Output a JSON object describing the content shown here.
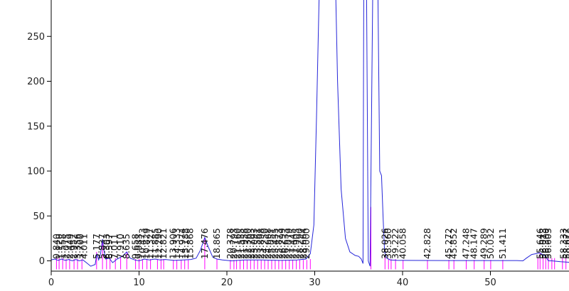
{
  "chart_data": {
    "type": "line",
    "title": "",
    "xlabel": "",
    "ylabel": "",
    "xlim": [
      0,
      59.5
    ],
    "ylim": [
      -10,
      295
    ],
    "x_ticks": [
      0,
      10,
      20,
      30,
      40,
      50
    ],
    "y_ticks": [
      0,
      50,
      100,
      150,
      200,
      250
    ],
    "x_tick_labels": [
      "0",
      "10",
      "20",
      "30",
      "40",
      "50"
    ],
    "y_tick_labels": [
      "0",
      "50",
      "100",
      "150",
      "200",
      "250"
    ],
    "grid": false,
    "legend": "none",
    "colors": {
      "trace": "#2626d9",
      "markers": "#ff00ff",
      "axes": "#000000"
    },
    "series": [
      {
        "values": [
          [
            0,
            1
          ],
          [
            0.4,
            2
          ],
          [
            0.8,
            0.5
          ],
          [
            1.2,
            2
          ],
          [
            1.6,
            0.5
          ],
          [
            2.0,
            1.5
          ],
          [
            2.4,
            0
          ],
          [
            2.8,
            1.5
          ],
          [
            3.2,
            0
          ],
          [
            3.6,
            1
          ],
          [
            4.0,
            -2
          ],
          [
            4.5,
            -6
          ],
          [
            5.0,
            -4
          ],
          [
            5.2,
            8
          ],
          [
            5.4,
            1
          ],
          [
            5.6,
            7
          ],
          [
            5.84,
            24
          ],
          [
            6.0,
            12
          ],
          [
            6.2,
            2
          ],
          [
            6.6,
            3
          ],
          [
            7.0,
            -2
          ],
          [
            7.5,
            2
          ],
          [
            7.9,
            4
          ],
          [
            8.2,
            6
          ],
          [
            8.6,
            10
          ],
          [
            9.0,
            3
          ],
          [
            9.5,
            1
          ],
          [
            10,
            0
          ],
          [
            10.6,
            2
          ],
          [
            11.2,
            1
          ],
          [
            11.8,
            2
          ],
          [
            12.4,
            1
          ],
          [
            13,
            1.5
          ],
          [
            14,
            0.5
          ],
          [
            15,
            1
          ],
          [
            15.9,
            1.5
          ],
          [
            16.5,
            3
          ],
          [
            17.0,
            12
          ],
          [
            17.48,
            26
          ],
          [
            17.9,
            15
          ],
          [
            18.4,
            4
          ],
          [
            18.87,
            2
          ],
          [
            19.5,
            1
          ],
          [
            20.5,
            0
          ],
          [
            22,
            1
          ],
          [
            24,
            1
          ],
          [
            26,
            0.5
          ],
          [
            28,
            1
          ],
          [
            29.0,
            2
          ],
          [
            29.5,
            8
          ],
          [
            29.9,
            40
          ],
          [
            30.2,
            160
          ],
          [
            30.5,
            295
          ],
          [
            32.4,
            295
          ],
          [
            32.6,
            200
          ],
          [
            33.0,
            80
          ],
          [
            33.5,
            25
          ],
          [
            34.0,
            10
          ],
          [
            34.6,
            6
          ],
          [
            35.0,
            5
          ],
          [
            35.3,
            2
          ],
          [
            35.5,
            -3
          ],
          [
            35.58,
            295
          ],
          [
            35.9,
            295
          ],
          [
            36.1,
            0
          ],
          [
            36.3,
            -6
          ],
          [
            36.6,
            295
          ],
          [
            37.2,
            295
          ],
          [
            37.4,
            100
          ],
          [
            37.6,
            95
          ],
          [
            37.8,
            45
          ],
          [
            37.95,
            10
          ],
          [
            38.2,
            3
          ],
          [
            38.6,
            1
          ],
          [
            39.5,
            0.5
          ],
          [
            40.5,
            0.5
          ],
          [
            45,
            0.3
          ],
          [
            50,
            0.3
          ],
          [
            53,
            0.3
          ],
          [
            53.7,
            0
          ],
          [
            54.1,
            3
          ],
          [
            54.7,
            7
          ],
          [
            55.2,
            8
          ],
          [
            55.6,
            9
          ],
          [
            56.3,
            5
          ],
          [
            56.6,
            0
          ],
          [
            57,
            0
          ],
          [
            58,
            -1
          ],
          [
            59.5,
            -2
          ]
        ]
      }
    ],
    "peak_markers": [
      [
        0.6,
        4
      ],
      [
        0.9,
        3
      ],
      [
        1.3,
        3
      ],
      [
        1.7,
        2
      ],
      [
        2.1,
        2
      ],
      [
        2.6,
        2
      ],
      [
        3.0,
        2
      ],
      [
        3.5,
        2
      ],
      [
        5.17,
        10
      ],
      [
        5.84,
        24
      ],
      [
        6.3,
        3
      ],
      [
        6.7,
        3
      ],
      [
        7.3,
        3
      ],
      [
        7.9,
        4
      ],
      [
        8.6,
        10
      ],
      [
        9.6,
        2
      ],
      [
        10.0,
        2
      ],
      [
        10.4,
        2
      ],
      [
        10.9,
        2
      ],
      [
        11.3,
        2
      ],
      [
        12.1,
        2
      ],
      [
        12.5,
        2
      ],
      [
        12.8,
        2
      ],
      [
        13.9,
        1
      ],
      [
        14.3,
        1
      ],
      [
        14.8,
        1
      ],
      [
        15.2,
        1
      ],
      [
        15.6,
        1
      ],
      [
        17.48,
        26
      ],
      [
        18.87,
        2
      ],
      [
        20.4,
        1
      ],
      [
        20.8,
        1
      ],
      [
        21.1,
        1
      ],
      [
        21.5,
        1
      ],
      [
        21.9,
        1
      ],
      [
        22.3,
        1
      ],
      [
        22.7,
        1
      ],
      [
        23.1,
        1
      ],
      [
        23.5,
        1
      ],
      [
        23.9,
        1
      ],
      [
        24.3,
        1
      ],
      [
        24.7,
        1
      ],
      [
        25.1,
        1
      ],
      [
        25.5,
        1
      ],
      [
        25.9,
        1
      ],
      [
        26.3,
        1
      ],
      [
        26.7,
        1
      ],
      [
        27.1,
        1
      ],
      [
        27.5,
        1
      ],
      [
        27.9,
        1
      ],
      [
        28.3,
        1
      ],
      [
        28.7,
        1
      ],
      [
        29.1,
        1
      ],
      [
        29.5,
        2
      ],
      [
        36.4,
        60
      ],
      [
        38.0,
        4
      ],
      [
        38.4,
        2
      ],
      [
        38.7,
        2
      ],
      [
        39.2,
        2
      ],
      [
        40.06,
        1
      ],
      [
        42.83,
        1
      ],
      [
        45.27,
        1
      ],
      [
        45.85,
        1
      ],
      [
        47.25,
        1
      ],
      [
        48.15,
        1
      ],
      [
        49.29,
        1
      ],
      [
        50.03,
        1
      ],
      [
        51.41,
        1
      ],
      [
        55.4,
        3
      ],
      [
        55.65,
        9
      ],
      [
        56.0,
        3
      ],
      [
        56.3,
        3
      ],
      [
        56.6,
        3
      ],
      [
        57.0,
        3
      ],
      [
        57.3,
        3
      ],
      [
        58.2,
        3
      ],
      [
        58.6,
        3
      ],
      [
        59.0,
        3
      ],
      [
        59.4,
        3
      ]
    ],
    "annotations": [
      {
        "text": "0.840",
        "x": 0.6
      },
      {
        "text": "1.120",
        "x": 0.95
      },
      {
        "text": "1.558",
        "x": 1.3
      },
      {
        "text": "2.075",
        "x": 1.75
      },
      {
        "text": "2.449",
        "x": 2.15
      },
      {
        "text": "2.952",
        "x": 2.55
      },
      {
        "text": "3.356",
        "x": 3.0
      },
      {
        "text": "3.700",
        "x": 3.35
      },
      {
        "text": "4.011",
        "x": 3.75
      },
      {
        "text": "5.177",
        "x": 5.17
      },
      {
        "text": "5.837",
        "x": 5.84
      },
      {
        "text": "6.303",
        "x": 6.3
      },
      {
        "text": "6.597",
        "x": 6.65
      },
      {
        "text": "7.011",
        "x": 7.2
      },
      {
        "text": "7.910",
        "x": 7.9
      },
      {
        "text": "8.635",
        "x": 8.6
      },
      {
        "text": "9.658",
        "x": 9.6
      },
      {
        "text": "9.983",
        "x": 9.98
      },
      {
        "text": "10.473",
        "x": 10.4
      },
      {
        "text": "10.829",
        "x": 10.85
      },
      {
        "text": "11.327",
        "x": 11.3
      },
      {
        "text": "11.885",
        "x": 11.85
      },
      {
        "text": "12.290",
        "x": 12.25
      },
      {
        "text": "12.821",
        "x": 12.8
      },
      {
        "text": "13.906",
        "x": 13.9
      },
      {
        "text": "14.333",
        "x": 14.35
      },
      {
        "text": "14.974",
        "x": 14.95
      },
      {
        "text": "15.188",
        "x": 15.3
      },
      {
        "text": "15.868",
        "x": 15.85
      },
      {
        "text": "17.476",
        "x": 17.48
      },
      {
        "text": "18.865",
        "x": 18.87
      },
      {
        "text": "20.378",
        "x": 20.4
      },
      {
        "text": "20.793",
        "x": 20.8
      },
      {
        "text": "21.160",
        "x": 21.2
      },
      {
        "text": "21.555",
        "x": 21.6
      },
      {
        "text": "21.958",
        "x": 22.0
      },
      {
        "text": "22.360",
        "x": 22.4
      },
      {
        "text": "22.703",
        "x": 22.75
      },
      {
        "text": "23.093",
        "x": 23.1
      },
      {
        "text": "23.561",
        "x": 23.5
      },
      {
        "text": "23.898",
        "x": 23.9
      },
      {
        "text": "24.250",
        "x": 24.3
      },
      {
        "text": "24.668",
        "x": 24.7
      },
      {
        "text": "25.051",
        "x": 25.1
      },
      {
        "text": "25.455",
        "x": 25.5
      },
      {
        "text": "25.873",
        "x": 25.9
      },
      {
        "text": "26.299",
        "x": 26.3
      },
      {
        "text": "26.633",
        "x": 26.7
      },
      {
        "text": "27.079",
        "x": 27.1
      },
      {
        "text": "27.445",
        "x": 27.5
      },
      {
        "text": "27.905",
        "x": 27.9
      },
      {
        "text": "28.290",
        "x": 28.3
      },
      {
        "text": "28.664",
        "x": 28.7
      },
      {
        "text": "29.000",
        "x": 29.05
      },
      {
        "text": "38.026",
        "x": 38.0
      },
      {
        "text": "38.360",
        "x": 38.4
      },
      {
        "text": "39.222",
        "x": 39.2
      },
      {
        "text": "40.058",
        "x": 40.06
      },
      {
        "text": "42.828",
        "x": 42.83
      },
      {
        "text": "45.272",
        "x": 45.27
      },
      {
        "text": "45.852",
        "x": 45.85
      },
      {
        "text": "47.248",
        "x": 47.25
      },
      {
        "text": "48.147",
        "x": 48.15
      },
      {
        "text": "49.289",
        "x": 49.29
      },
      {
        "text": "50.032",
        "x": 50.03
      },
      {
        "text": "51.411",
        "x": 51.41
      },
      {
        "text": "55.646",
        "x": 55.65
      },
      {
        "text": "56.013",
        "x": 56.05
      },
      {
        "text": "56.300",
        "x": 56.35
      },
      {
        "text": "56.603",
        "x": 56.6
      },
      {
        "text": "58.333",
        "x": 58.35
      },
      {
        "text": "58.677",
        "x": 58.7
      },
      {
        "text": "59.050",
        "x": 59.05
      },
      {
        "text": "59.388",
        "x": 59.4
      }
    ]
  }
}
